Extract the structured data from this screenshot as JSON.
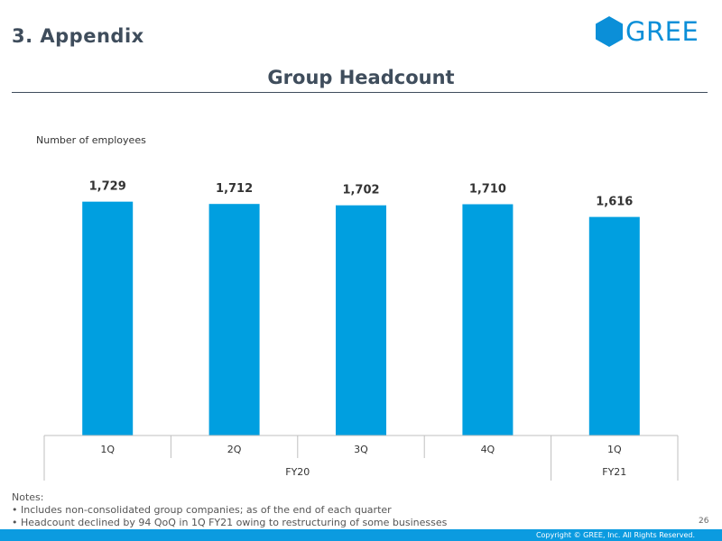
{
  "header": {
    "section_title": "3. Appendix",
    "logo_text": "GREE",
    "page_title": "Group Headcount"
  },
  "chart_data": {
    "type": "bar",
    "title": "Group Headcount",
    "ylabel": "Number of employees",
    "xlabel": "",
    "categories": [
      "1Q",
      "2Q",
      "3Q",
      "4Q",
      "1Q"
    ],
    "groups": [
      {
        "label": "FY20",
        "span": 4
      },
      {
        "label": "FY21",
        "span": 1
      }
    ],
    "values": [
      1729,
      1712,
      1702,
      1710,
      1616
    ],
    "value_labels": [
      "1,729",
      "1,712",
      "1,702",
      "1,710",
      "1,616"
    ],
    "ylim": [
      0,
      1800
    ],
    "grid": false,
    "bar_color": "#009fe0"
  },
  "notes": {
    "heading": "Notes:",
    "items": [
      "• Includes non-consolidated group companies; as of the end of each quarter",
      "• Headcount declined by 94 QoQ in 1Q FY21 owing to restructuring of some businesses"
    ]
  },
  "footer": {
    "page_number": "26",
    "copyright": "Copyright © GREE, Inc. All Rights Reserved."
  },
  "colors": {
    "brand": "#0b8fd8",
    "footer_bar": "#0b9be0",
    "title": "#3f4d5c"
  }
}
